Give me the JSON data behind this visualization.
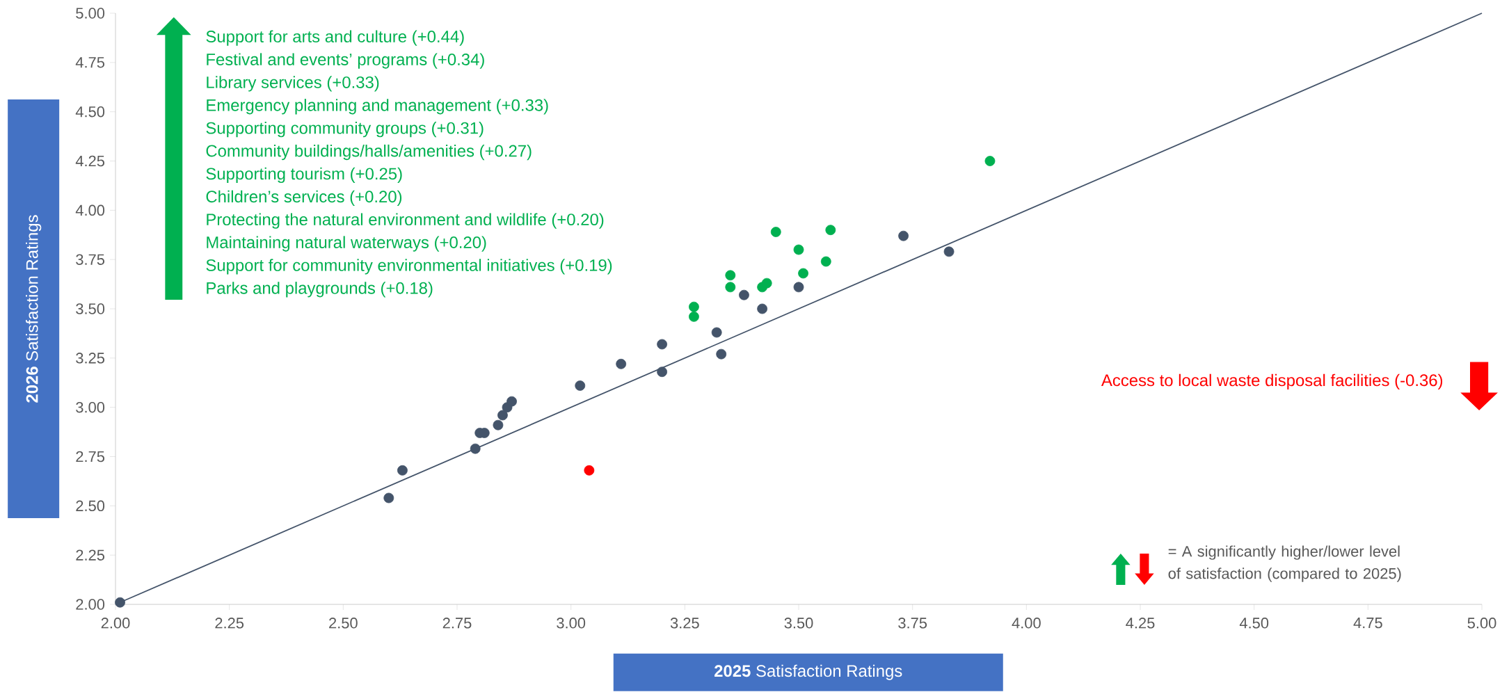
{
  "chart_data": {
    "type": "scatter",
    "xlabel": "**2025** Satisfaction Ratings",
    "ylabel": "**2026** Satisfaction Ratings",
    "xlim": [
      2,
      5
    ],
    "ylim": [
      2,
      5
    ],
    "xticks": [
      {
        "value": 2,
        "label": "2.00"
      },
      {
        "value": 2.25,
        "label": "2.25"
      },
      {
        "value": 2.5,
        "label": "2.50"
      },
      {
        "value": 2.75,
        "label": "2.75"
      },
      {
        "value": 3,
        "label": "3.00"
      },
      {
        "value": 3.25,
        "label": "3.25"
      },
      {
        "value": 3.5,
        "label": "3.50"
      },
      {
        "value": 3.75,
        "label": "3.75"
      },
      {
        "value": 4,
        "label": "4.00"
      },
      {
        "value": 4.25,
        "label": "4.25"
      },
      {
        "value": 4.5,
        "label": "4.50"
      },
      {
        "value": 4.75,
        "label": "4.75"
      },
      {
        "value": 5,
        "label": "5.00"
      }
    ],
    "yticks": [
      {
        "value": 2,
        "label": "2.00"
      },
      {
        "value": 2.25,
        "label": "2.25"
      },
      {
        "value": 2.5,
        "label": "2.50"
      },
      {
        "value": 2.75,
        "label": "2.75"
      },
      {
        "value": 3,
        "label": "3.00"
      },
      {
        "value": 3.25,
        "label": "3.25"
      },
      {
        "value": 3.5,
        "label": "3.50"
      },
      {
        "value": 3.75,
        "label": "3.75"
      },
      {
        "value": 4,
        "label": "4.00"
      },
      {
        "value": 4.25,
        "label": "4.25"
      },
      {
        "value": 4.5,
        "label": "4.50"
      },
      {
        "value": 4.75,
        "label": "4.75"
      },
      {
        "value": 5,
        "label": "5.00"
      }
    ],
    "annotations": [
      "Support for arts and culture (+0.44)",
      "Festival and events’ programs (+0.34)",
      "Library services (+0.33)",
      "Emergency planning and management (+0.33)",
      "Supporting community groups (+0.31)",
      "Community buildings/halls/amenities (+0.27)",
      "Supporting tourism (+0.25)",
      "Children’s services (+0.20)",
      "Protecting the natural environment and wildlife (+0.20)",
      "Maintaining natural waterways (+0.20)",
      "Support for community environmental initiatives (+0.19)",
      "Parks and playgrounds (+0.18)",
      "Access to local waste disposal facilities (-0.36)",
      "= A significantly higher/lower level of satisfaction (compared to 2025)"
    ],
    "series": [
      {
        "color": "#44546a",
        "marker": "circle",
        "x": [
          2.01,
          2.6,
          2.63,
          2.79,
          2.8,
          2.81,
          2.84,
          2.85,
          2.86,
          2.87,
          3.02,
          3.11,
          3.2,
          3.2,
          3.32,
          3.33,
          3.38,
          3.42,
          3.5,
          3.73,
          3.83
        ],
        "values": [
          2.01,
          2.54,
          2.68,
          2.79,
          2.87,
          2.87,
          2.91,
          2.96,
          3.0,
          3.03,
          3.11,
          3.22,
          3.32,
          3.18,
          3.38,
          3.27,
          3.57,
          3.5,
          3.61,
          3.87,
          3.79
        ]
      },
      {
        "color": "#00b050",
        "marker": "circle",
        "x": [
          3.27,
          3.27,
          3.35,
          3.35,
          3.42,
          3.43,
          3.45,
          3.5,
          3.51,
          3.56,
          3.57,
          3.92
        ],
        "values": [
          3.51,
          3.46,
          3.67,
          3.61,
          3.61,
          3.63,
          3.89,
          3.8,
          3.68,
          3.74,
          3.9,
          4.25
        ]
      },
      {
        "color": "#ff0000",
        "marker": "circle",
        "x": [
          3.04
        ],
        "values": [
          2.68
        ]
      },
      {
        "type": "line",
        "color": "#44546a",
        "marker": "none",
        "x": [
          2,
          5
        ],
        "values": [
          2,
          5
        ]
      }
    ]
  }
}
